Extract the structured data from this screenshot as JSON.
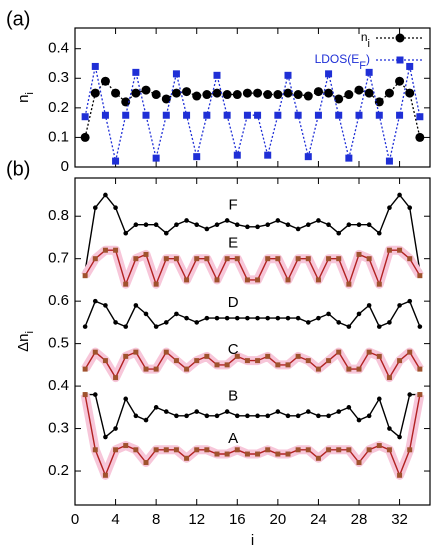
{
  "chart_data": [
    {
      "type": "line",
      "panel_label": "(a)",
      "ylabel": "n",
      "ylabel_sub": "i",
      "x": [
        1,
        2,
        3,
        4,
        5,
        6,
        7,
        8,
        9,
        10,
        11,
        12,
        13,
        14,
        15,
        16,
        17,
        18,
        19,
        20,
        21,
        22,
        23,
        24,
        25,
        26,
        27,
        28,
        29,
        30,
        31,
        32,
        33,
        34
      ],
      "xlim": [
        0,
        35
      ],
      "xticks": [
        0,
        4,
        8,
        12,
        16,
        20,
        24,
        28,
        32
      ],
      "ylim": [
        0,
        0.47
      ],
      "yticks": [
        0,
        0.1,
        0.2,
        0.3,
        0.4
      ],
      "legend": "upper right",
      "series": [
        {
          "name": "n",
          "name_sub": "i",
          "color": "#000000",
          "marker": "circle",
          "dashed": true,
          "values": [
            0.1,
            0.25,
            0.29,
            0.25,
            0.22,
            0.25,
            0.26,
            0.245,
            0.23,
            0.25,
            0.255,
            0.24,
            0.245,
            0.25,
            0.245,
            0.245,
            0.25,
            0.25,
            0.245,
            0.245,
            0.25,
            0.245,
            0.24,
            0.255,
            0.25,
            0.23,
            0.245,
            0.26,
            0.25,
            0.22,
            0.25,
            0.29,
            0.25,
            0.1
          ]
        },
        {
          "name": "LDOS(E",
          "name_sub": "F",
          "name_suffix": ")",
          "color": "#1f2fd6",
          "marker": "square",
          "dashed": true,
          "values": [
            0.17,
            0.34,
            0.175,
            0.02,
            0.175,
            0.32,
            0.175,
            0.03,
            0.175,
            0.315,
            0.175,
            0.035,
            0.175,
            0.31,
            0.175,
            0.04,
            0.175,
            0.175,
            0.04,
            0.175,
            0.31,
            0.175,
            0.035,
            0.175,
            0.315,
            0.175,
            0.03,
            0.175,
            0.32,
            0.175,
            0.02,
            0.175,
            0.34,
            0.17
          ]
        }
      ]
    },
    {
      "type": "line",
      "panel_label": "(b)",
      "xlabel": "i",
      "ylabel": "Δn",
      "ylabel_sub": "i",
      "x": [
        1,
        2,
        3,
        4,
        5,
        6,
        7,
        8,
        9,
        10,
        11,
        12,
        13,
        14,
        15,
        16,
        17,
        18,
        19,
        20,
        21,
        22,
        23,
        24,
        25,
        26,
        27,
        28,
        29,
        30,
        31,
        32,
        33,
        34
      ],
      "xlim": [
        0,
        35
      ],
      "xticks": [
        0,
        4,
        8,
        12,
        16,
        20,
        24,
        28,
        32
      ],
      "ylim": [
        0.12,
        0.89
      ],
      "yticks": [
        0.2,
        0.3,
        0.4,
        0.5,
        0.6,
        0.7,
        0.8
      ],
      "series": [
        {
          "name": "F",
          "color": "#000000",
          "marker": "dot",
          "values": [
            0.67,
            0.82,
            0.85,
            0.82,
            0.76,
            0.78,
            0.78,
            0.78,
            0.76,
            0.78,
            0.79,
            0.78,
            0.77,
            0.78,
            0.79,
            0.78,
            0.775,
            0.775,
            0.78,
            0.79,
            0.78,
            0.77,
            0.78,
            0.79,
            0.78,
            0.76,
            0.78,
            0.78,
            0.78,
            0.76,
            0.82,
            0.85,
            0.82,
            0.67
          ]
        },
        {
          "name": "E",
          "color": "#b22222",
          "marker": "sq",
          "band_color": "#f7c6d9",
          "values": [
            0.66,
            0.7,
            0.72,
            0.72,
            0.64,
            0.7,
            0.71,
            0.64,
            0.7,
            0.7,
            0.65,
            0.7,
            0.7,
            0.65,
            0.7,
            0.7,
            0.65,
            0.65,
            0.7,
            0.7,
            0.65,
            0.7,
            0.7,
            0.65,
            0.7,
            0.7,
            0.64,
            0.71,
            0.7,
            0.64,
            0.72,
            0.72,
            0.7,
            0.66
          ]
        },
        {
          "name": "D",
          "color": "#000000",
          "marker": "dot",
          "values": [
            0.54,
            0.6,
            0.59,
            0.55,
            0.54,
            0.59,
            0.57,
            0.54,
            0.55,
            0.57,
            0.56,
            0.55,
            0.56,
            0.56,
            0.56,
            0.56,
            0.56,
            0.56,
            0.56,
            0.56,
            0.56,
            0.56,
            0.55,
            0.56,
            0.57,
            0.55,
            0.54,
            0.57,
            0.59,
            0.54,
            0.55,
            0.59,
            0.6,
            0.54
          ]
        },
        {
          "name": "C",
          "color": "#b22222",
          "marker": "sq",
          "band_color": "#f7c6d9",
          "values": [
            0.44,
            0.48,
            0.46,
            0.42,
            0.47,
            0.48,
            0.44,
            0.44,
            0.48,
            0.46,
            0.44,
            0.46,
            0.47,
            0.45,
            0.45,
            0.47,
            0.46,
            0.46,
            0.47,
            0.45,
            0.45,
            0.47,
            0.46,
            0.44,
            0.46,
            0.48,
            0.44,
            0.44,
            0.48,
            0.47,
            0.42,
            0.46,
            0.48,
            0.44
          ]
        },
        {
          "name": "B",
          "color": "#000000",
          "marker": "dot",
          "values": [
            0.38,
            0.38,
            0.28,
            0.3,
            0.37,
            0.33,
            0.32,
            0.35,
            0.34,
            0.33,
            0.33,
            0.34,
            0.33,
            0.33,
            0.34,
            0.33,
            0.33,
            0.33,
            0.33,
            0.34,
            0.33,
            0.33,
            0.34,
            0.33,
            0.33,
            0.34,
            0.35,
            0.32,
            0.33,
            0.37,
            0.3,
            0.28,
            0.38,
            0.38
          ]
        },
        {
          "name": "A",
          "color": "#b22222",
          "marker": "sq",
          "band_color": "#f7c6d9",
          "values": [
            0.38,
            0.25,
            0.19,
            0.25,
            0.26,
            0.25,
            0.22,
            0.25,
            0.25,
            0.25,
            0.23,
            0.25,
            0.25,
            0.24,
            0.24,
            0.25,
            0.24,
            0.24,
            0.25,
            0.24,
            0.24,
            0.25,
            0.25,
            0.23,
            0.25,
            0.25,
            0.25,
            0.22,
            0.25,
            0.26,
            0.25,
            0.19,
            0.25,
            0.38
          ]
        }
      ]
    }
  ]
}
